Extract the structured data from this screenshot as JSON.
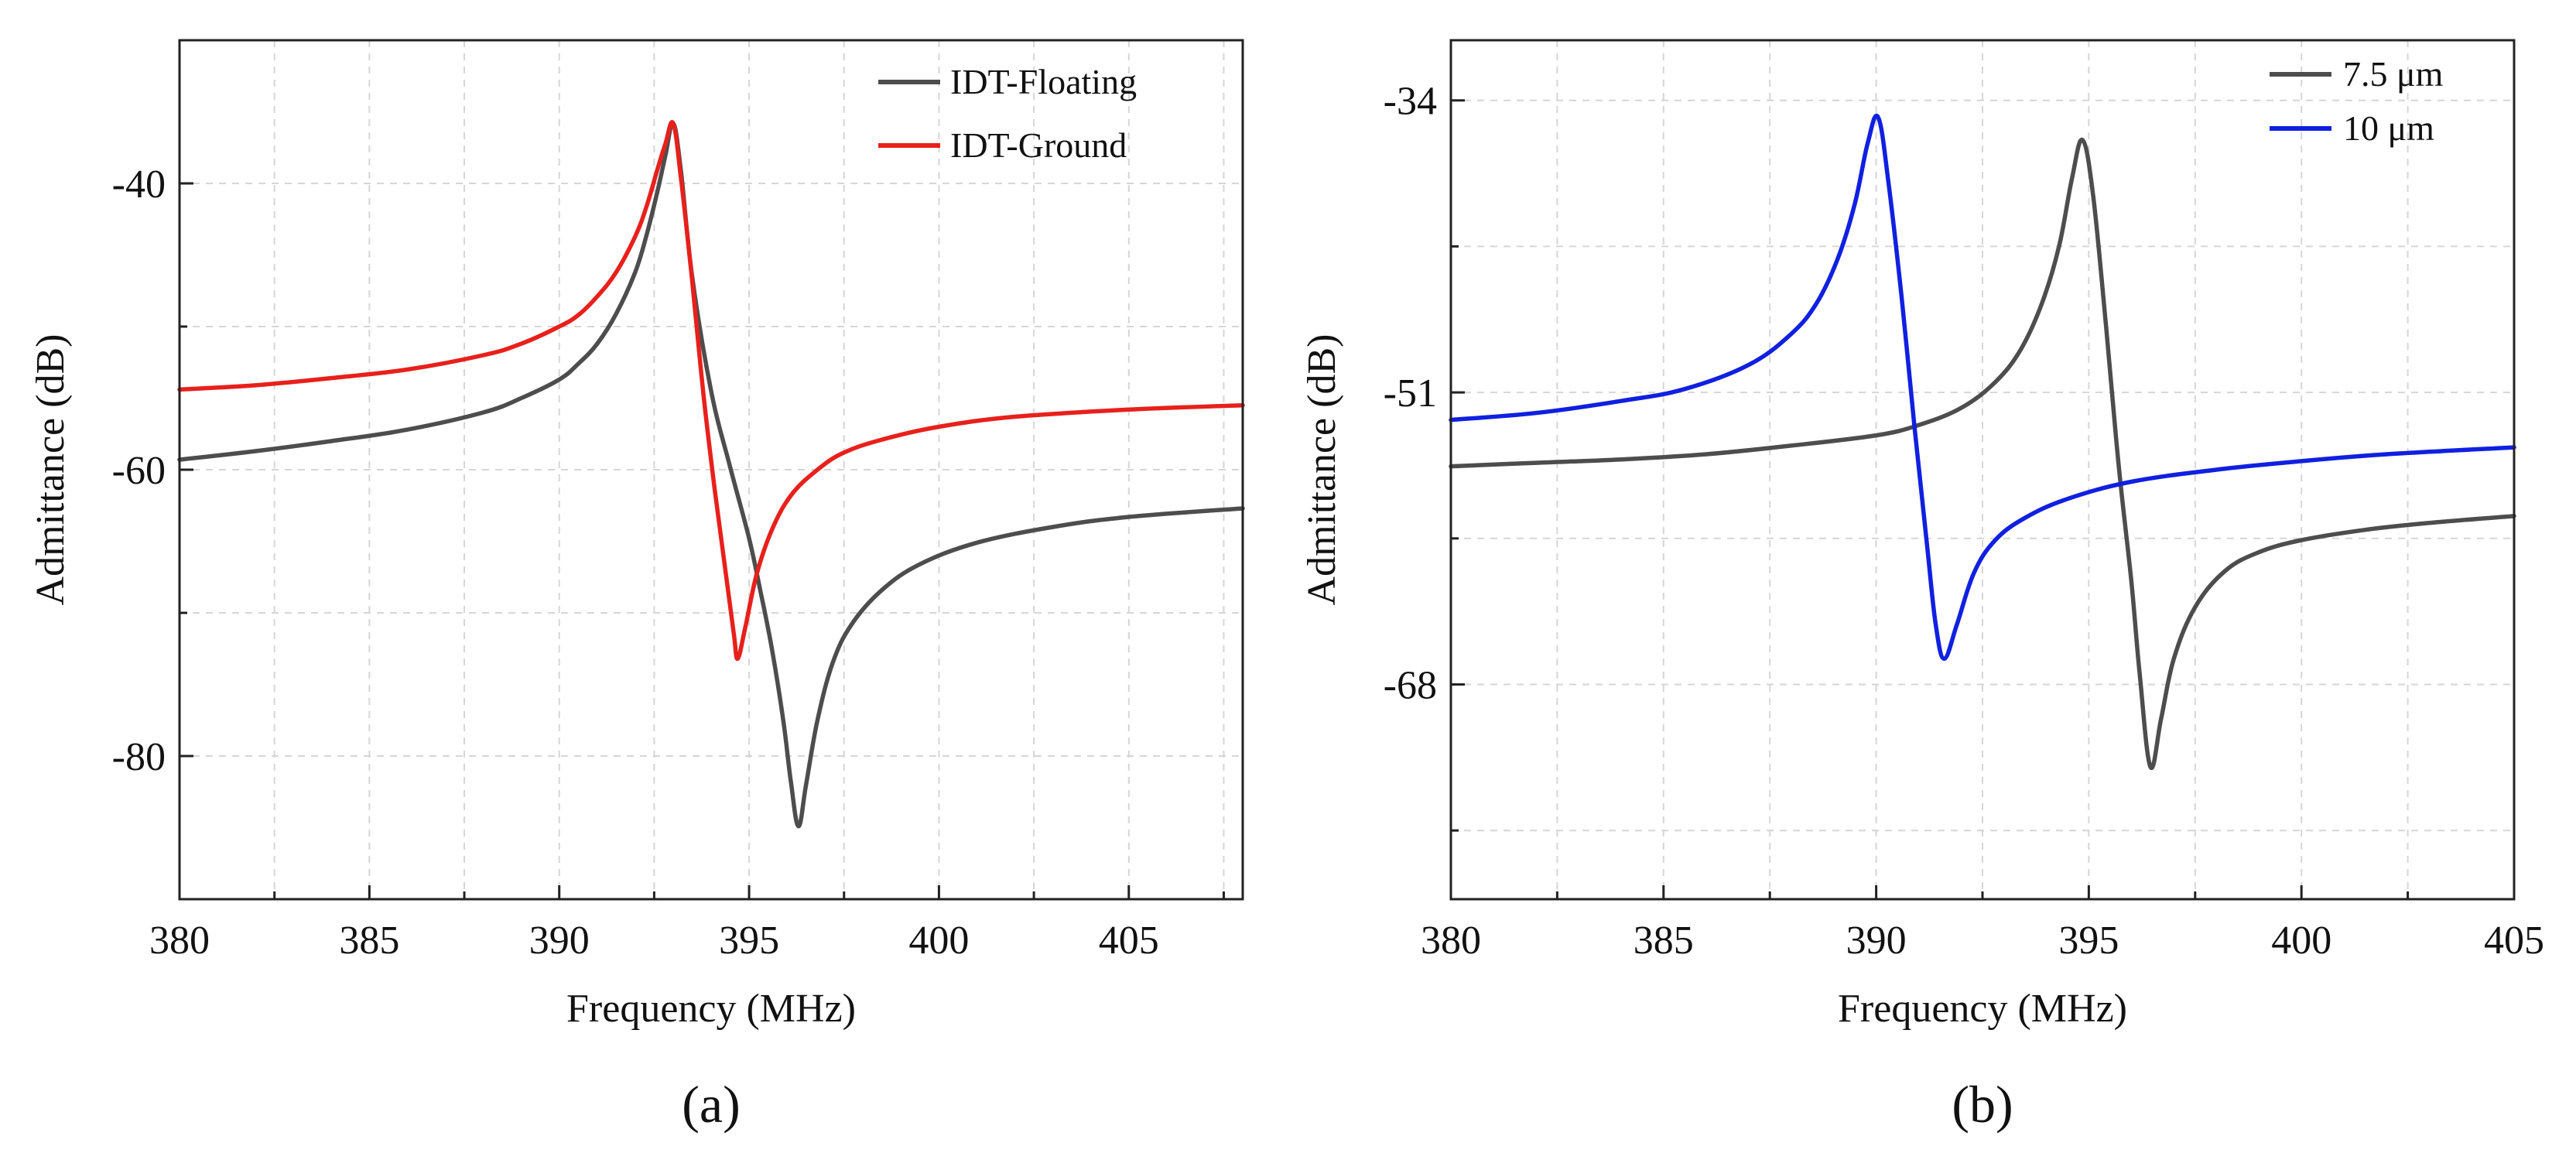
{
  "chart_data": [
    {
      "panel": "(a)",
      "type": "line",
      "xlabel": "Frequency (MHz)",
      "ylabel": "Admittance (dB)",
      "xlim": [
        380,
        408
      ],
      "ylim": [
        -90,
        -30
      ],
      "xticks": [
        380,
        385,
        390,
        395,
        400,
        405
      ],
      "xtick_labels": [
        "380",
        "385",
        "390",
        "395",
        "400",
        "405"
      ],
      "yticks": [
        -40,
        -60,
        -80
      ],
      "ytick_labels": [
        "-40",
        "-60",
        "-80"
      ],
      "grid": true,
      "legend_position": "top-right",
      "series": [
        {
          "name": "IDT-Floating",
          "color": "#4d4d4d",
          "x": [
            380,
            382,
            384,
            386,
            388,
            389,
            390,
            390.5,
            391,
            391.5,
            392,
            392.3,
            392.6,
            392.8,
            393,
            393.2,
            393.5,
            394,
            394.5,
            395,
            395.3,
            395.6,
            395.9,
            396.1,
            396.3,
            396.5,
            396.8,
            397.2,
            397.7,
            398.5,
            399.5,
            401,
            403,
            405,
            408
          ],
          "values": [
            -59.3,
            -58.7,
            -58.0,
            -57.2,
            -56.0,
            -55.0,
            -53.7,
            -52.6,
            -51.2,
            -49.1,
            -46.2,
            -43.6,
            -40.4,
            -38.0,
            -35.8,
            -39.0,
            -46.5,
            -54.5,
            -59.8,
            -64.8,
            -68.5,
            -72.5,
            -77.5,
            -81.8,
            -84.9,
            -82.0,
            -77.5,
            -73.5,
            -70.8,
            -68.4,
            -66.6,
            -65.1,
            -64.0,
            -63.3,
            -62.7
          ]
        },
        {
          "name": "IDT-Ground",
          "color": "#e8201b",
          "x": [
            380,
            382,
            384,
            386,
            388,
            389,
            390,
            390.5,
            391,
            391.5,
            392,
            392.3,
            392.6,
            392.8,
            393,
            393.2,
            393.5,
            393.8,
            394.1,
            394.4,
            394.6,
            394.7,
            394.9,
            395.2,
            395.6,
            396.1,
            396.8,
            397.5,
            398.5,
            400,
            402,
            405,
            408
          ],
          "values": [
            -54.4,
            -54.1,
            -53.6,
            -53.0,
            -52.0,
            -51.2,
            -50.0,
            -49.2,
            -47.9,
            -46.2,
            -43.7,
            -41.6,
            -38.9,
            -37.2,
            -35.8,
            -39.5,
            -46.8,
            -54.8,
            -61.5,
            -67.5,
            -71.5,
            -73.2,
            -71.0,
            -67.3,
            -64.2,
            -61.8,
            -60.0,
            -58.8,
            -57.9,
            -57.0,
            -56.3,
            -55.8,
            -55.5
          ]
        }
      ]
    },
    {
      "panel": "(b)",
      "type": "line",
      "xlabel": "Frequency (MHz)",
      "ylabel": "Admittance (dB)",
      "xlim": [
        380,
        405
      ],
      "ylim": [
        -80.5,
        -30.5
      ],
      "xticks": [
        380,
        385,
        390,
        395,
        400,
        405
      ],
      "xtick_labels": [
        "380",
        "385",
        "390",
        "395",
        "400",
        "405"
      ],
      "yticks": [
        -34,
        -51,
        -68
      ],
      "ytick_labels": [
        "-34",
        "-51",
        "-68"
      ],
      "grid": true,
      "legend_position": "top-right",
      "series": [
        {
          "name": "7.5 μm",
          "color": "#4d4d4d",
          "x": [
            380,
            382,
            384,
            386,
            388,
            390,
            391,
            392,
            392.8,
            393.4,
            393.9,
            394.3,
            394.6,
            394.85,
            395.1,
            395.4,
            395.7,
            396,
            396.2,
            396.45,
            396.7,
            397,
            397.5,
            398.2,
            399,
            400,
            401.5,
            403,
            405
          ],
          "values": [
            -55.3,
            -55.1,
            -54.9,
            -54.6,
            -54.1,
            -53.5,
            -52.9,
            -51.9,
            -50.4,
            -48.5,
            -45.8,
            -42.5,
            -38.6,
            -36.3,
            -39.5,
            -47.0,
            -55.2,
            -62.0,
            -67.5,
            -72.8,
            -70.0,
            -66.5,
            -63.5,
            -61.4,
            -60.3,
            -59.6,
            -59.0,
            -58.6,
            -58.2
          ]
        },
        {
          "name": "10 μm",
          "color": "#1020e0",
          "x": [
            380,
            382,
            384,
            385.5,
            387,
            388,
            388.6,
            389.1,
            389.5,
            389.8,
            390.05,
            390.3,
            390.6,
            390.9,
            391.2,
            391.4,
            391.6,
            391.9,
            392.3,
            392.8,
            393.5,
            394.5,
            396,
            398,
            400,
            402,
            405
          ],
          "values": [
            -52.6,
            -52.2,
            -51.5,
            -50.8,
            -49.4,
            -47.6,
            -45.8,
            -43.2,
            -40.0,
            -36.5,
            -35.0,
            -39.0,
            -45.5,
            -53.0,
            -60.0,
            -64.5,
            -66.5,
            -64.5,
            -61.5,
            -59.6,
            -58.3,
            -57.2,
            -56.2,
            -55.5,
            -55.0,
            -54.6,
            -54.2
          ]
        }
      ]
    }
  ]
}
